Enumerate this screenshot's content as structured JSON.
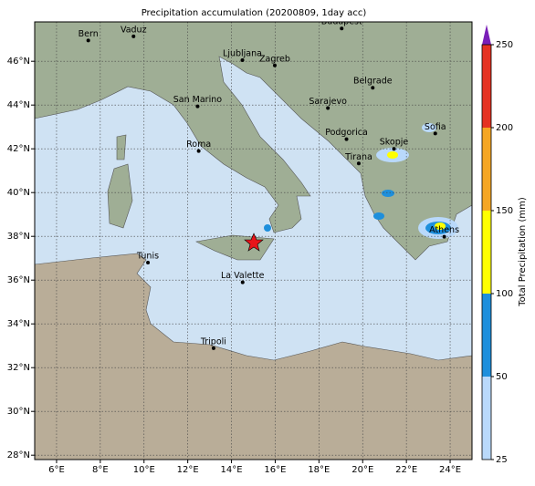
{
  "title": "Precipitation accumulation (20200809, 1day acc)",
  "map": {
    "xlim": [
      5,
      25
    ],
    "ylim": [
      27.8,
      47.8
    ],
    "xticks": [
      {
        "value": 6,
        "label": "6°E"
      },
      {
        "value": 8,
        "label": "8°E"
      },
      {
        "value": 10,
        "label": "10°E"
      },
      {
        "value": 12,
        "label": "12°E"
      },
      {
        "value": 14,
        "label": "14°E"
      },
      {
        "value": 16,
        "label": "16°E"
      },
      {
        "value": 18,
        "label": "18°E"
      },
      {
        "value": 20,
        "label": "20°E"
      },
      {
        "value": 22,
        "label": "22°E"
      },
      {
        "value": 24,
        "label": "24°E"
      }
    ],
    "yticks": [
      {
        "value": 28,
        "label": "28°N"
      },
      {
        "value": 30,
        "label": "30°N"
      },
      {
        "value": 32,
        "label": "32°N"
      },
      {
        "value": 34,
        "label": "34°N"
      },
      {
        "value": 36,
        "label": "36°N"
      },
      {
        "value": 38,
        "label": "38°N"
      },
      {
        "value": 40,
        "label": "40°N"
      },
      {
        "value": 42,
        "label": "42°N"
      },
      {
        "value": 44,
        "label": "44°N"
      },
      {
        "value": 46,
        "label": "46°N"
      }
    ],
    "grid": true,
    "cities": [
      "Bern",
      "Vaduz",
      "Budapest",
      "Ljubljana",
      "Zagreb",
      "Belgrade",
      "San Marino",
      "Sarajevo",
      "Sofia",
      "Podgorica",
      "Skopje",
      "Roma",
      "Tirana",
      "Athens",
      "Tunis",
      "La Valette",
      "Tripoli"
    ]
  },
  "colorbar": {
    "label": "Total Precipitation (mm)",
    "ticks": [
      25,
      50,
      100,
      150,
      200,
      250
    ],
    "colors": [
      "#b9d9fb",
      "#1e8fdc",
      "#ffff00",
      "#f5a623",
      "#e53222"
    ],
    "extend_color": "#7a1fb8"
  }
}
